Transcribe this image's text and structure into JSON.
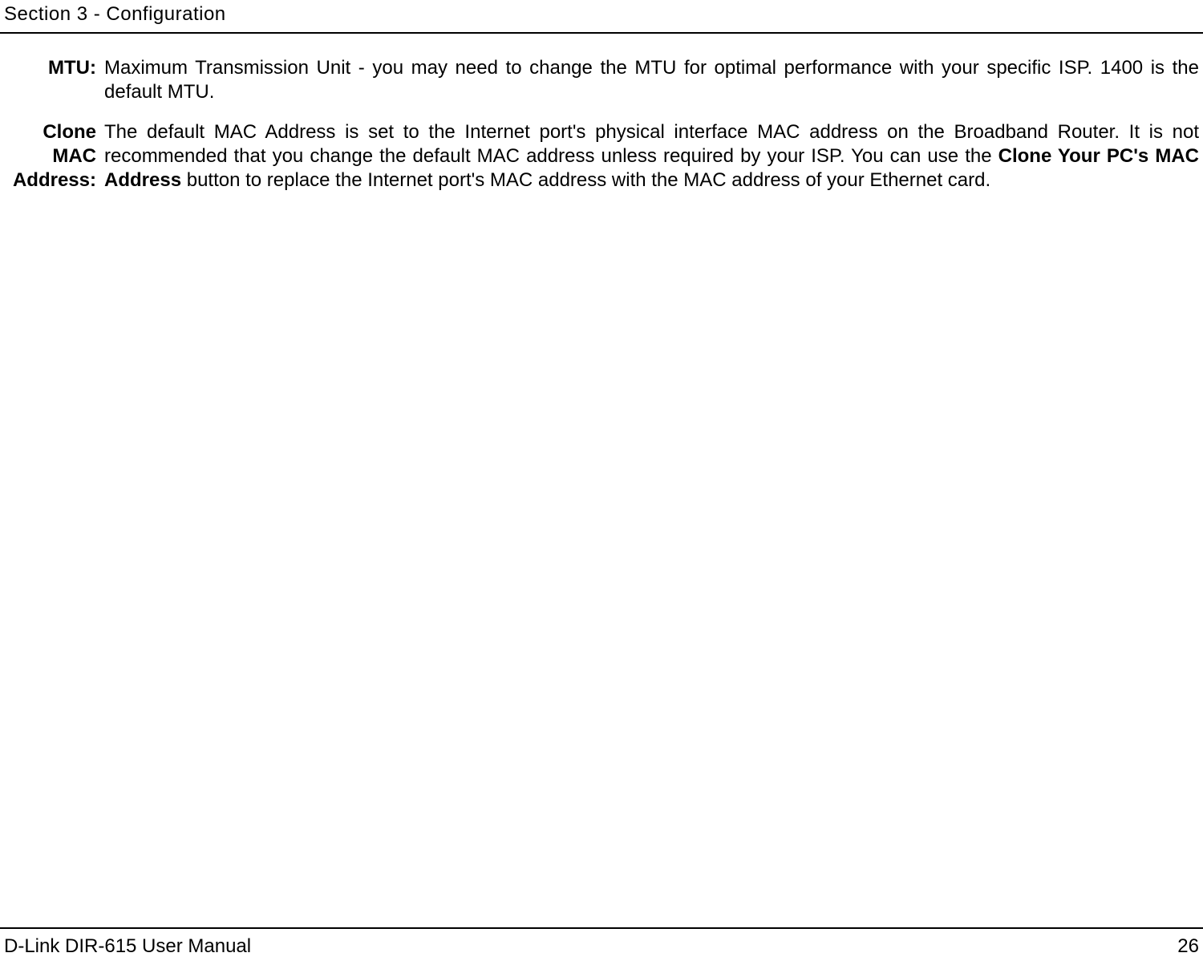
{
  "header": {
    "section_title": "Section 3 - Configuration"
  },
  "definitions": [
    {
      "label": "MTU:",
      "text_parts": [
        {
          "text": "Maximum Transmission Unit - you may need to change the MTU for optimal performance with your specific ISP. 1400 is the default MTU.",
          "bold": false
        }
      ]
    },
    {
      "label": "Clone MAC Address:",
      "text_parts": [
        {
          "text": "The default MAC Address is set to the Internet port's physical interface MAC address on the Broadband Router. It is not recommended that you change the default MAC address unless required by your ISP.  You can use the ",
          "bold": false
        },
        {
          "text": "Clone Your PC's MAC Address",
          "bold": true
        },
        {
          "text": " button to replace the Internet port's MAC address with the MAC address of your Ethernet card.",
          "bold": false
        }
      ]
    }
  ],
  "footer": {
    "manual_name": "D-Link DIR-615 User Manual",
    "page_number": "26"
  }
}
